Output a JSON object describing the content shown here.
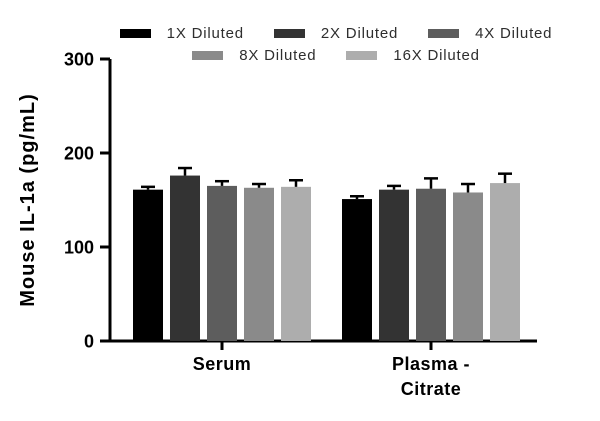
{
  "figure": {
    "background": "#ffffff"
  },
  "chart_data": {
    "type": "bar",
    "title": "",
    "ylabel": "Mouse IL-1a (pg/mL)",
    "xlabel": "",
    "ylim": [
      0,
      300
    ],
    "yticks": [
      0,
      100,
      200,
      300
    ],
    "categories": [
      "Serum",
      "Plasma -\nCitrate"
    ],
    "series": [
      {
        "name": "1X Diluted",
        "color": "#000000",
        "values": [
          161,
          151
        ],
        "errors": [
          3,
          3
        ]
      },
      {
        "name": "2X Diluted",
        "color": "#333333",
        "values": [
          176,
          161
        ],
        "errors": [
          8,
          4
        ]
      },
      {
        "name": "4X Diluted",
        "color": "#5d5d5d",
        "values": [
          165,
          162
        ],
        "errors": [
          5,
          11
        ]
      },
      {
        "name": "8X Diluted",
        "color": "#8a8a8a",
        "values": [
          163,
          158
        ],
        "errors": [
          4,
          9
        ]
      },
      {
        "name": "16X Diluted",
        "color": "#adadad",
        "values": [
          164,
          168
        ],
        "errors": [
          7,
          10
        ]
      }
    ],
    "error_bars": "sd_upper_only",
    "error_bar_color": "#000000",
    "axis_color": "#000000",
    "grid": false,
    "legend_position": "top",
    "legend_rows": [
      3,
      2
    ]
  }
}
